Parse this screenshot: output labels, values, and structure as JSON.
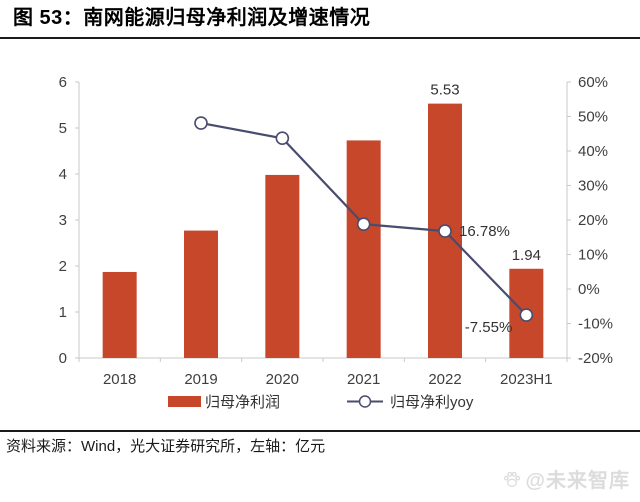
{
  "figure": {
    "title": "图 53：南网能源归母净利润及增速情况",
    "source_note": "资料来源：Wind，光大证券研究所，左轴：亿元",
    "watermark": "@未来智库"
  },
  "colors": {
    "bar": "#C7472A",
    "line": "#494C6E",
    "marker_fill": "#FFFFFF",
    "axis_line": "#C9C9C9",
    "axis_text": "#3F3F3F",
    "label_text": "#333333",
    "title_text": "#000000",
    "rule": "#1A1A1A",
    "watermark": "#DCDCDC"
  },
  "chart_data": {
    "type": "bar+line combo",
    "categories": [
      "2018",
      "2019",
      "2020",
      "2021",
      "2022",
      "2023H1"
    ],
    "series": [
      {
        "name": "归母净利润",
        "type": "bar",
        "axis": "left",
        "values": [
          1.87,
          2.77,
          3.98,
          4.73,
          5.53,
          1.94
        ]
      },
      {
        "name": "归母净利yoy",
        "type": "line",
        "axis": "right",
        "values": [
          null,
          48.1,
          43.7,
          18.8,
          16.78,
          -7.55
        ]
      }
    ],
    "left_axis": {
      "min": 0,
      "max": 6,
      "step": 1,
      "suffix": "",
      "unit": "亿元"
    },
    "right_axis": {
      "min": -20,
      "max": 60,
      "step": 10,
      "suffix": "%"
    },
    "data_labels": [
      {
        "series_index": 0,
        "category_index": 4,
        "text": "5.53"
      },
      {
        "series_index": 0,
        "category_index": 5,
        "text": "1.94"
      },
      {
        "series_index": 1,
        "category_index": 4,
        "text": "16.78%"
      },
      {
        "series_index": 1,
        "category_index": 5,
        "text": "-7.55%"
      }
    ],
    "legend_position": "bottom",
    "grid": false,
    "title": "南网能源归母净利润及增速情况",
    "xlabel": "",
    "ylabel_left": "亿元",
    "ylabel_right": "%"
  }
}
